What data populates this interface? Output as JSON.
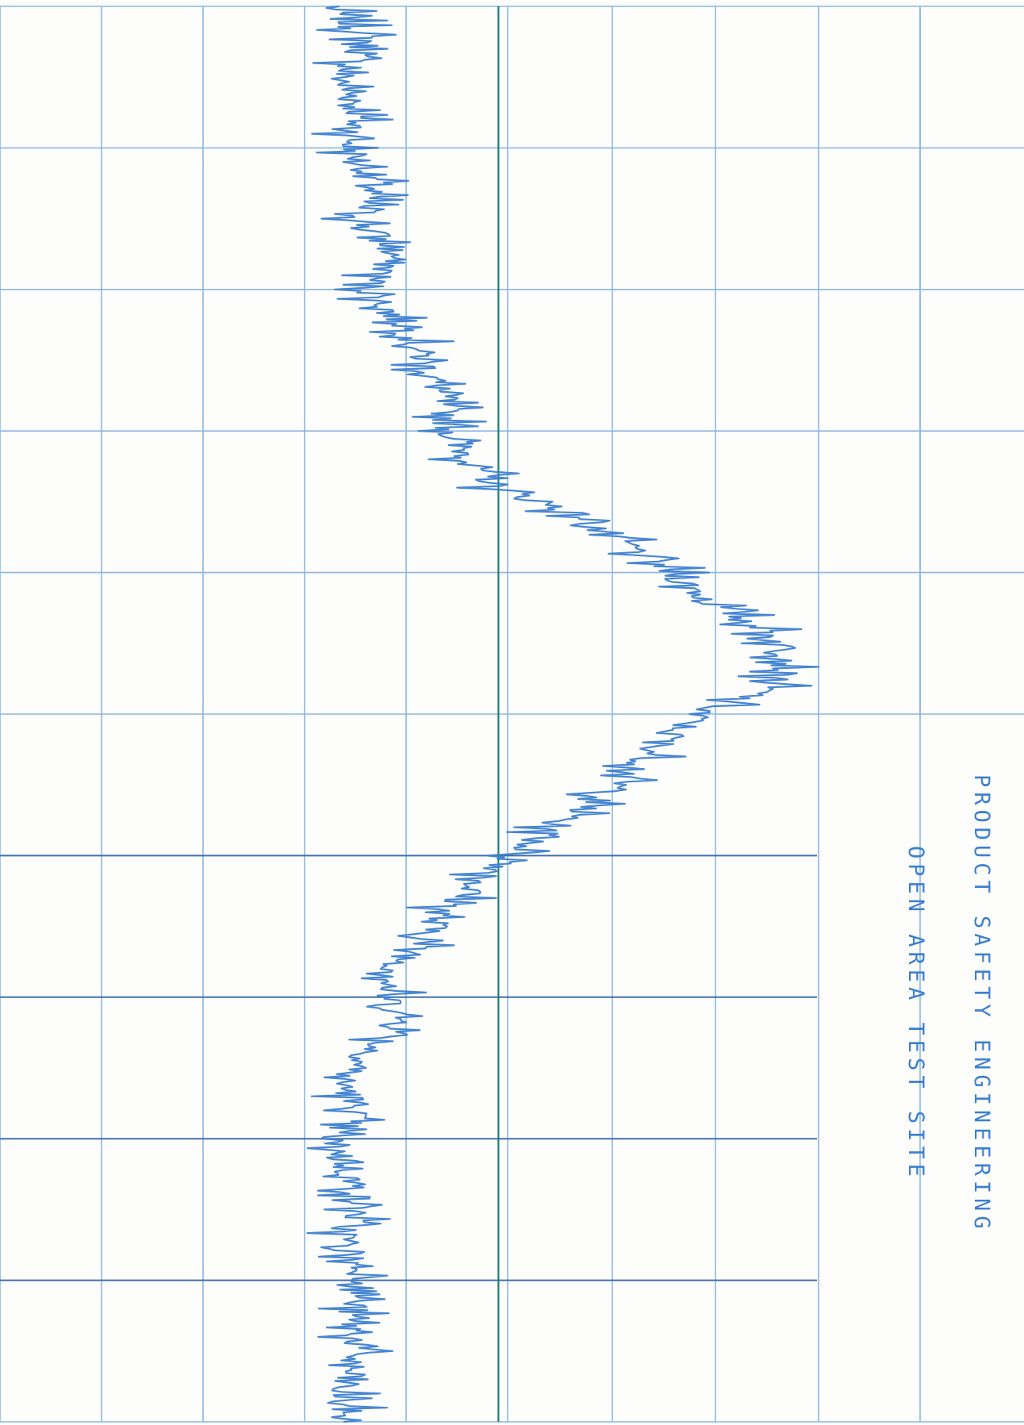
{
  "header": {
    "line1": "PRODUCT SAFETY ENGINEERING",
    "line2": "OPEN AREA TEST SITE"
  },
  "colors": {
    "paper": "#fdfdfb",
    "grid_light": "#8ab6e0",
    "grid_dark": "#3f6fae",
    "trace": "#3d7fd0",
    "reference_line": "#1e7d78"
  },
  "chart_data": {
    "type": "line",
    "orientation": "rotated-90",
    "title": "",
    "xlabel": "",
    "ylabel": "",
    "grid": true,
    "x_divisions": 10,
    "y_divisions": 10,
    "xlim": [
      0,
      10
    ],
    "ylim": [
      0,
      10
    ],
    "reference_level": 4.9,
    "series": [
      {
        "x": [
          0.0,
          0.25,
          0.5,
          0.75,
          1.0,
          1.25,
          1.5,
          1.75,
          2.0,
          2.25,
          2.5,
          2.75,
          3.0,
          3.2,
          3.4,
          3.6,
          3.8,
          4.0,
          4.2,
          4.4,
          4.6,
          4.8,
          5.0,
          5.2,
          5.4,
          5.6,
          5.8,
          6.0,
          6.2,
          6.4,
          6.6,
          6.8,
          7.0,
          7.2,
          7.4,
          7.6,
          7.8,
          8.0,
          8.2,
          8.5,
          8.75,
          9.0,
          9.25,
          9.5,
          9.75,
          10.0
        ],
        "y": [
          3.6,
          4.0,
          3.7,
          3.9,
          3.8,
          4.1,
          3.9,
          4.3,
          4.0,
          4.4,
          4.6,
          4.8,
          4.9,
          5.1,
          5.4,
          6.3,
          6.8,
          7.3,
          7.7,
          8.3,
          8.6,
          8.4,
          7.6,
          7.2,
          6.9,
          6.5,
          6.0,
          5.6,
          5.2,
          4.8,
          4.6,
          4.3,
          4.2,
          4.4,
          4.0,
          3.7,
          3.9,
          3.6,
          3.8,
          3.9,
          3.7,
          4.0,
          3.8,
          3.9,
          3.7,
          3.8
        ]
      }
    ]
  }
}
